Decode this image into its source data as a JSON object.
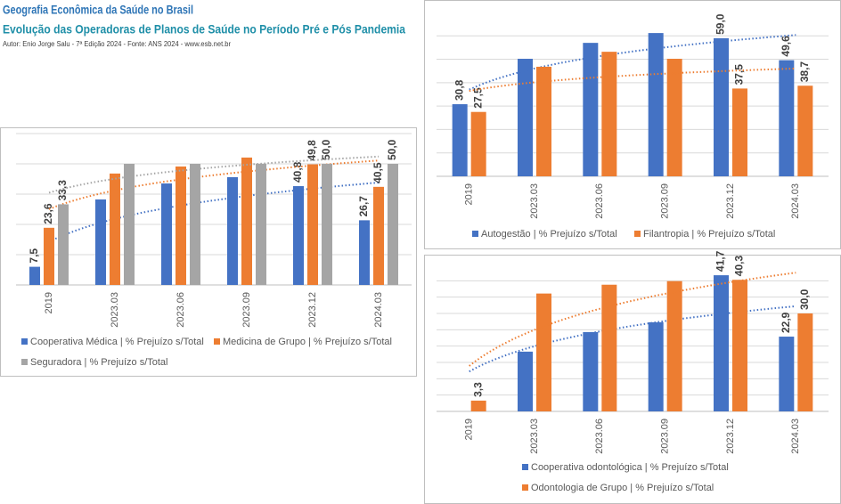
{
  "header": {
    "title": "Geografia Econômica da Saúde no Brasil",
    "subtitle": "Evolução das Operadoras de Planos de Saúde no Período Pré e Pós Pandemia",
    "author": "Autor: Enio Jorge Salu - 7ª Edição 2024 - Fonte: ANS 2024 - www.esb.net.br"
  },
  "chart_data": [
    {
      "type": "bar",
      "categories": [
        "2019",
        "2023.03",
        "2023.06",
        "2023.09",
        "2023.12",
        "2024.03"
      ],
      "ylim": [
        0,
        62.5
      ],
      "yticks": [
        0,
        12.5,
        25,
        37.5,
        50,
        62.5
      ],
      "grid": true,
      "trendline": "log",
      "series": [
        {
          "name": "Cooperativa Médica | % Prejuízo s/Total",
          "color": "#4472c4",
          "values": [
            7.5,
            35.3,
            41.9,
            44.5,
            40.8,
            26.7
          ],
          "value_labels": [
            "7,5",
            null,
            null,
            null,
            "40,8",
            "26,7"
          ]
        },
        {
          "name": "Medicina de Grupo | % Prejuízo s/Total",
          "color": "#ed7d31",
          "values": [
            23.6,
            46.0,
            48.9,
            52.6,
            49.8,
            40.5
          ],
          "value_labels": [
            "23,6",
            null,
            null,
            null,
            "49,8",
            "40,5"
          ]
        },
        {
          "name": "Seguradora | % Prejuízo s/Total",
          "color": "#a5a5a5",
          "values": [
            33.3,
            50.0,
            50.0,
            50.0,
            50.0,
            50.0
          ],
          "value_labels": [
            "33,3",
            null,
            null,
            null,
            "50,0",
            "50,0"
          ]
        }
      ]
    },
    {
      "type": "bar",
      "categories": [
        "2019",
        "2023.03",
        "2023.06",
        "2023.09",
        "2023.12",
        "2024.03"
      ],
      "ylim": [
        0,
        62
      ],
      "yticks": [
        0,
        10,
        20,
        30,
        40,
        50,
        60
      ],
      "grid": true,
      "trendline": "log",
      "series": [
        {
          "name": "Autogestão | % Prejuízo s/Total",
          "color": "#4472c4",
          "values": [
            30.8,
            50.2,
            57.0,
            61.2,
            59.0,
            49.6
          ],
          "value_labels": [
            "30,8",
            null,
            null,
            null,
            "59,0",
            "49,6"
          ]
        },
        {
          "name": "Filantropia | % Prejuízo s/Total",
          "color": "#ed7d31",
          "values": [
            27.5,
            46.8,
            53.2,
            50.2,
            37.5,
            38.7
          ],
          "value_labels": [
            "27,5",
            null,
            null,
            null,
            "37,5",
            "38,7"
          ]
        }
      ]
    },
    {
      "type": "bar",
      "categories": [
        "2019",
        "2023.03",
        "2023.06",
        "2023.09",
        "2023.12",
        "2024.03"
      ],
      "ylim": [
        0,
        42
      ],
      "yticks": [
        0,
        5,
        10,
        15,
        20,
        25,
        30,
        35,
        40
      ],
      "grid": true,
      "trendline": "log",
      "series": [
        {
          "name": "Cooperativa odontológica | % Prejuízo s/Total",
          "color": "#4472c4",
          "values": [
            null,
            18.3,
            24.3,
            27.3,
            41.7,
            22.9
          ],
          "value_labels": [
            null,
            null,
            null,
            null,
            "41,7",
            "22,9"
          ]
        },
        {
          "name": "Odontologia de Grupo | % Prejuízo s/Total",
          "color": "#ed7d31",
          "values": [
            3.3,
            36.1,
            38.8,
            39.9,
            40.3,
            30.0
          ],
          "value_labels": [
            "3,3",
            null,
            null,
            null,
            "40,3",
            "30,0"
          ]
        }
      ]
    }
  ]
}
